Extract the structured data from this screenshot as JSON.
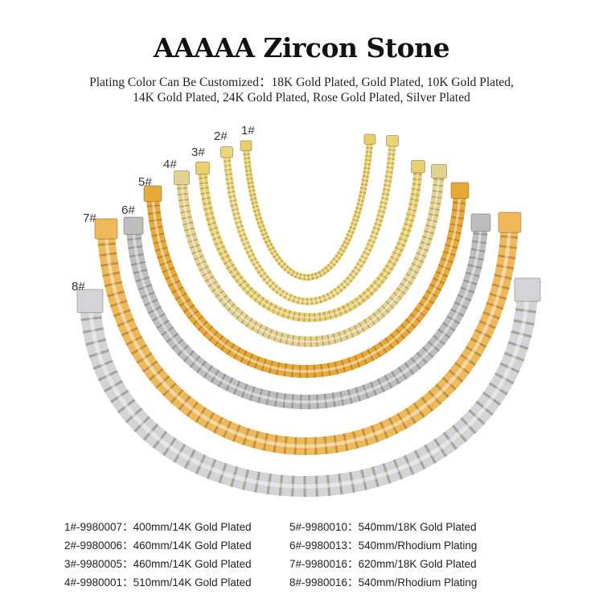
{
  "header": {
    "title": "AAAAA Zircon Stone",
    "subtitle_line1": "Plating Color Can Be Customized：18K Gold Plated, Gold Plated, 10K Gold Plated,",
    "subtitle_line2": "14K Gold Plated, 24K Gold Plated, Rose Gold Plated, Silver Plated"
  },
  "chains": [
    {
      "label": "1#",
      "spec": "1#-9980007：400mm/14K Gold Plated",
      "color": "#e9cf6a"
    },
    {
      "label": "2#",
      "spec": "2#-9980006：460mm/14K Gold Plated",
      "color": "#ecd47a"
    },
    {
      "label": "3#",
      "spec": "3#-9980005：460mm/14K Gold Plated",
      "color": "#e8cf70"
    },
    {
      "label": "4#",
      "spec": "4#-9980001：510mm/14K Gold Plated",
      "color": "#e2d18f"
    },
    {
      "label": "5#",
      "spec": "5#-9980010：540mm/18K Gold Plated",
      "color": "#e7a93a"
    },
    {
      "label": "6#",
      "spec": "6#-9980013：540mm/Rhodium Plating",
      "color": "#bdbdc0"
    },
    {
      "label": "7#",
      "spec": "7#-9980016：620mm/18K Gold Plated",
      "color": "#efb95a"
    },
    {
      "label": "8#",
      "spec": "8#-9980016：540mm/Rhodium Plating",
      "color": "#d4d4d8"
    }
  ]
}
